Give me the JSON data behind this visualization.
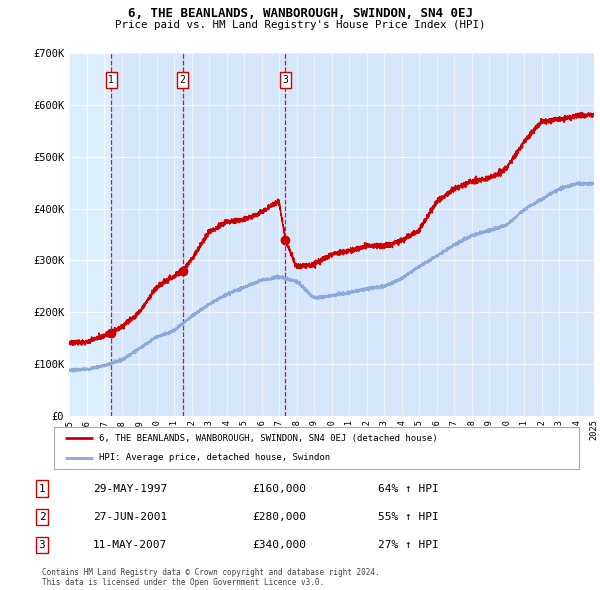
{
  "title": "6, THE BEANLANDS, WANBOROUGH, SWINDON, SN4 0EJ",
  "subtitle": "Price paid vs. HM Land Registry's House Price Index (HPI)",
  "plot_bg_color": "#ddeeff",
  "sale_dates": [
    1997.41,
    2001.49,
    2007.36
  ],
  "sale_prices": [
    160000,
    280000,
    340000
  ],
  "legend_line1": "6, THE BEANLANDS, WANBOROUGH, SWINDON, SN4 0EJ (detached house)",
  "legend_line2": "HPI: Average price, detached house, Swindon",
  "table_rows": [
    [
      "1",
      "29-MAY-1997",
      "£160,000",
      "64% ↑ HPI"
    ],
    [
      "2",
      "27-JUN-2001",
      "£280,000",
      "55% ↑ HPI"
    ],
    [
      "3",
      "11-MAY-2007",
      "£340,000",
      "27% ↑ HPI"
    ]
  ],
  "footer_text": "Contains HM Land Registry data © Crown copyright and database right 2024.\nThis data is licensed under the Open Government Licence v3.0.",
  "ylim": [
    0,
    700000
  ],
  "yticks": [
    0,
    100000,
    200000,
    300000,
    400000,
    500000,
    600000,
    700000
  ],
  "ytick_labels": [
    "£0",
    "£100K",
    "£200K",
    "£300K",
    "£400K",
    "£500K",
    "£600K",
    "£700K"
  ],
  "red_color": "#cc0000",
  "blue_color": "#88aadd",
  "hpi_key_years": [
    1995,
    1996,
    1997,
    1998,
    1999,
    2000,
    2001,
    2002,
    2003,
    2004,
    2005,
    2006,
    2007,
    2008,
    2009,
    2010,
    2011,
    2012,
    2013,
    2014,
    2015,
    2016,
    2017,
    2018,
    2019,
    2020,
    2021,
    2022,
    2023,
    2024,
    2025
  ],
  "hpi_key_vals": [
    88000,
    90000,
    97000,
    108000,
    130000,
    152000,
    165000,
    192000,
    215000,
    235000,
    248000,
    262000,
    268000,
    260000,
    228000,
    232000,
    238000,
    245000,
    250000,
    265000,
    288000,
    308000,
    330000,
    348000,
    358000,
    368000,
    398000,
    418000,
    438000,
    448000,
    448000
  ],
  "red_key_years": [
    1995,
    1996,
    1997.41,
    1998,
    1999,
    2000,
    2001.49,
    2002,
    2003,
    2004,
    2005,
    2006,
    2007.0,
    2007.36,
    2008,
    2009,
    2010,
    2011,
    2012,
    2013,
    2014,
    2015,
    2016,
    2017,
    2018,
    2019,
    2020,
    2021,
    2022,
    2023,
    2024,
    2025
  ],
  "red_key_vals": [
    140000,
    143000,
    160000,
    172000,
    200000,
    248000,
    280000,
    302000,
    355000,
    375000,
    378000,
    393000,
    415000,
    340000,
    288000,
    292000,
    312000,
    318000,
    328000,
    328000,
    338000,
    358000,
    412000,
    438000,
    452000,
    458000,
    478000,
    528000,
    568000,
    572000,
    578000,
    582000
  ]
}
